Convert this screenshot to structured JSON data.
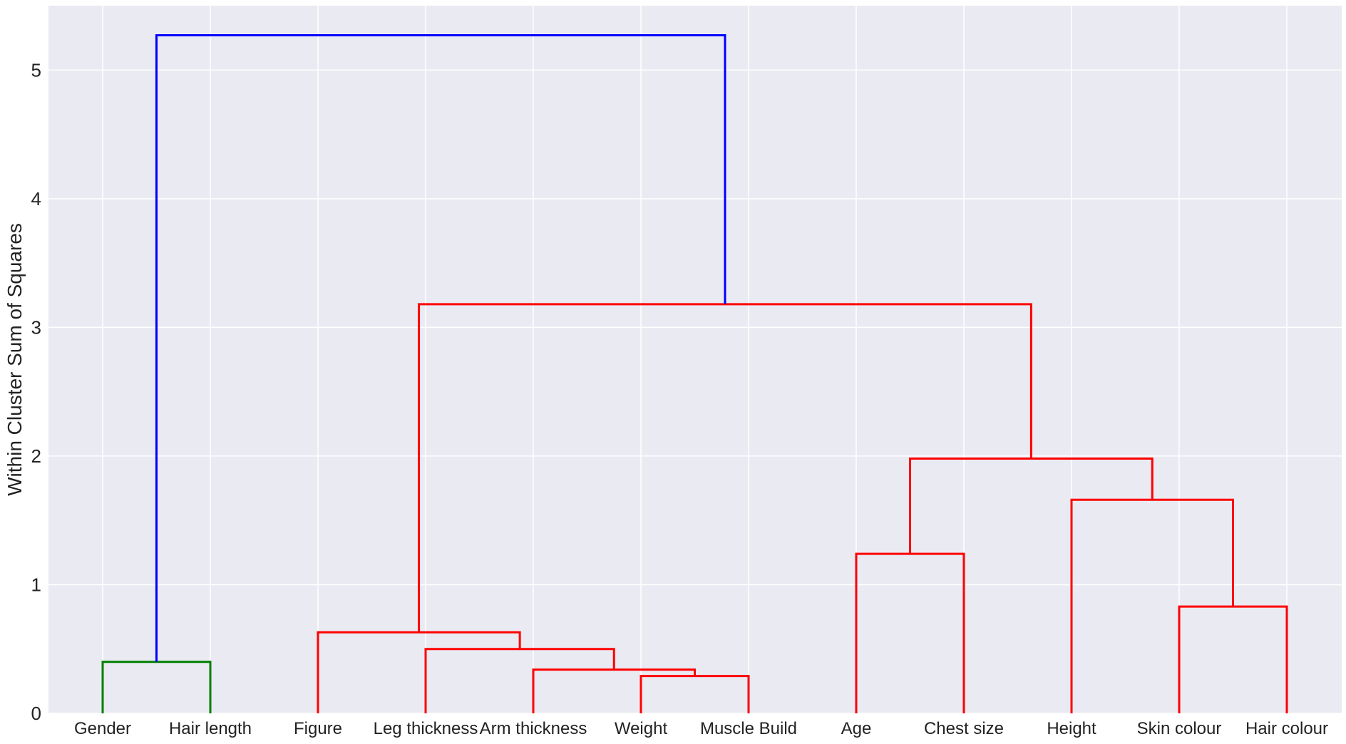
{
  "chart_data": {
    "type": "dendrogram",
    "title": "",
    "xlabel": "",
    "ylabel": "Within Cluster Sum of Squares",
    "ylim": [
      0,
      5.5
    ],
    "yticks": [
      0,
      1,
      2,
      3,
      4,
      5
    ],
    "grid": true,
    "colors": {
      "background": "#eaeaf2",
      "grid": "#ffffff",
      "cluster_a": "#008000",
      "cluster_b": "#ff0000",
      "root": "#0000ff"
    },
    "leaves": [
      "Gender",
      "Hair length",
      "Figure",
      "Leg thickness",
      "Arm thickness",
      "Weight",
      "Muscle Build",
      "Age",
      "Chest size",
      "Height",
      "Skin colour",
      "Hair colour"
    ],
    "links": [
      {
        "left": "leaf:0",
        "right": "leaf:1",
        "height": 0.4,
        "color": "cluster_a"
      },
      {
        "left": "leaf:5",
        "right": "leaf:6",
        "height": 0.29,
        "color": "cluster_b"
      },
      {
        "left": "leaf:4",
        "right": "link:1",
        "height": 0.34,
        "color": "cluster_b"
      },
      {
        "left": "leaf:3",
        "right": "link:2",
        "height": 0.5,
        "color": "cluster_b"
      },
      {
        "left": "leaf:2",
        "right": "link:3",
        "height": 0.63,
        "color": "cluster_b"
      },
      {
        "left": "leaf:10",
        "right": "leaf:11",
        "height": 0.83,
        "color": "cluster_b"
      },
      {
        "left": "leaf:7",
        "right": "leaf:8",
        "height": 1.24,
        "color": "cluster_b"
      },
      {
        "left": "leaf:9",
        "right": "link:5",
        "height": 1.66,
        "color": "cluster_b"
      },
      {
        "left": "link:6",
        "right": "link:7",
        "height": 1.98,
        "color": "cluster_b"
      },
      {
        "left": "link:4",
        "right": "link:8",
        "height": 3.18,
        "color": "cluster_b"
      },
      {
        "left": "link:0",
        "right": "link:9",
        "height": 5.27,
        "color": "root"
      }
    ]
  }
}
